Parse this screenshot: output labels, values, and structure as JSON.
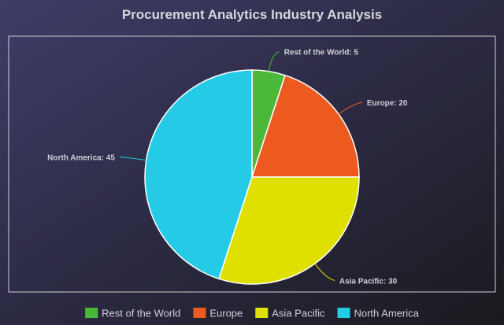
{
  "chart_data": {
    "type": "pie",
    "title": "Procurement Analytics Industry Analysis",
    "slices": [
      {
        "label": "Rest of the World",
        "value": 5,
        "color": "#4cb83a",
        "data_label": "Rest of the World: 5"
      },
      {
        "label": "Europe",
        "value": 20,
        "color": "#ec5a1f",
        "data_label": "Europe: 20"
      },
      {
        "label": "Asia Pacific",
        "value": 30,
        "color": "#dfe000",
        "data_label": "Asia Pacific: 30"
      },
      {
        "label": "North America",
        "value": 45,
        "color": "#25cbe6",
        "data_label": "North America: 45"
      }
    ],
    "legend": {
      "position": "bottom"
    },
    "start": "top",
    "direction": "clockwise"
  }
}
